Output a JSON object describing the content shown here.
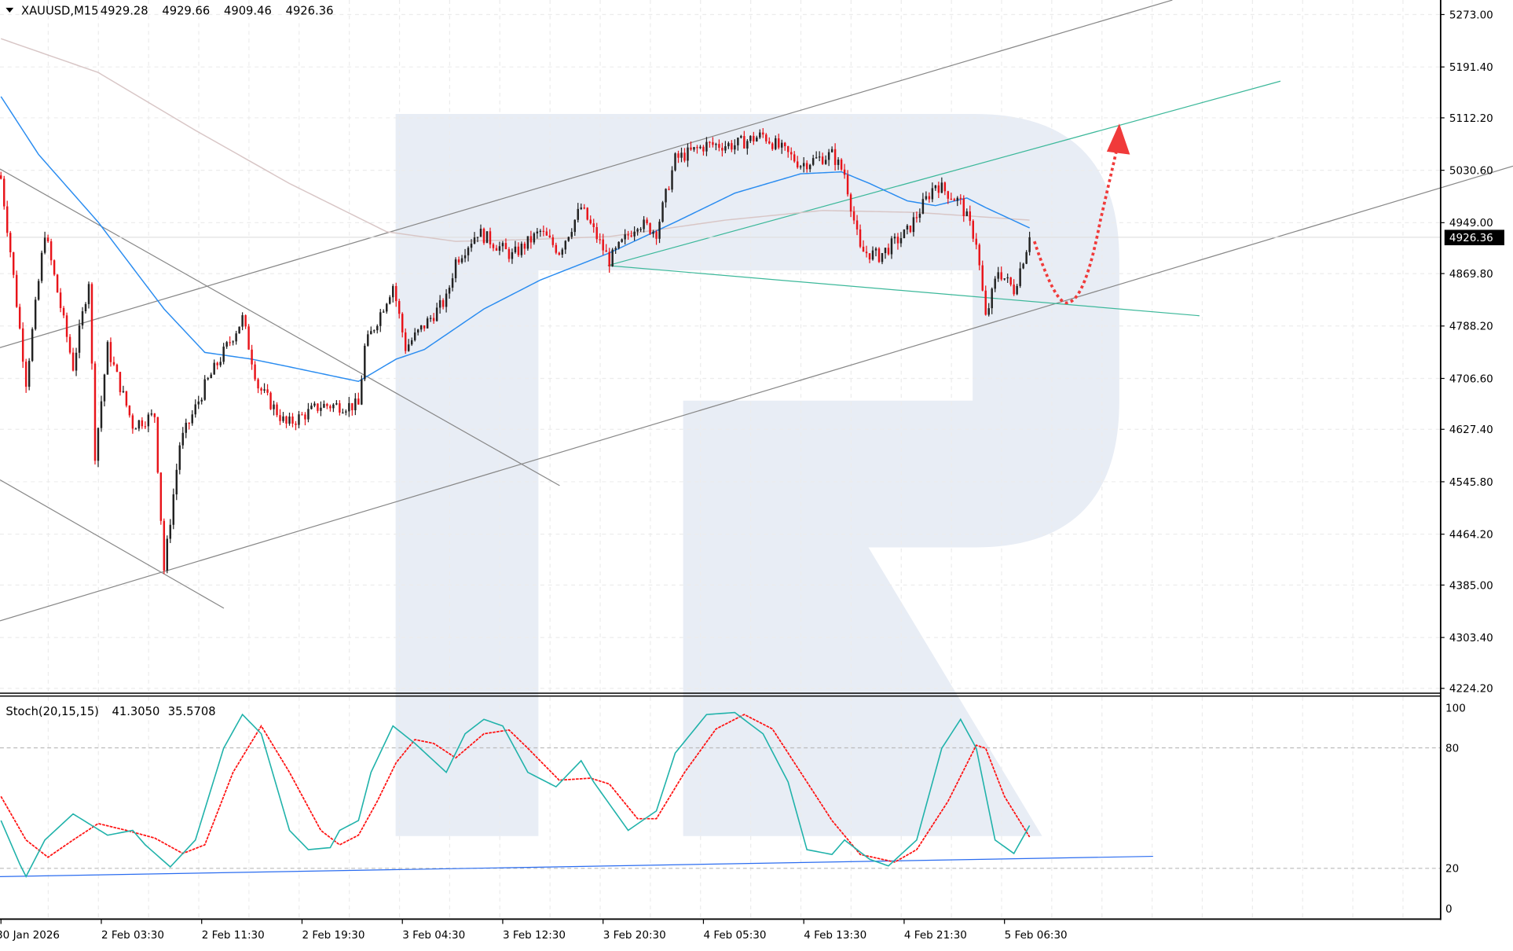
{
  "header": {
    "symbol": "XAUUSD,M15",
    "open": "4929.28",
    "high": "4929.66",
    "low": "4909.46",
    "close": "4926.36"
  },
  "current_price_label": "4926.36",
  "colors": {
    "bull": "#222222",
    "bear": "#e8141a",
    "ma_fast": "#2a8cf0",
    "ma_slow": "#d8c6c6",
    "stoch_k": "#20b2aa",
    "stoch_d": "#ff1010",
    "channel": "#888888",
    "green_lines": "#3cb89a",
    "forecast": "#f03a3a",
    "watermark": "#e8edf5"
  },
  "chart_data": [
    {
      "type": "candlestick",
      "title": "XAUUSD,M15",
      "price_ticks": [
        "5273.00",
        "5191.40",
        "5112.20",
        "5030.60",
        "4949.00",
        "4869.80",
        "4788.20",
        "4706.60",
        "4627.40",
        "4545.80",
        "4464.20",
        "4385.00",
        "4303.40",
        "4224.20"
      ],
      "ylim": [
        4224.2,
        5273.0
      ],
      "time_ticks": [
        "30 Jan 2026",
        "2 Feb 03:30",
        "2 Feb 11:30",
        "2 Feb 19:30",
        "3 Feb 04:30",
        "3 Feb 12:30",
        "3 Feb 20:30",
        "4 Feb 05:30",
        "4 Feb 13:30",
        "4 Feb 21:30",
        "5 Feb 06:30"
      ],
      "bars_per_time_tick": 32,
      "close_path": [
        [
          0,
          5017.6
        ],
        [
          3,
          4904.9
        ],
        [
          8,
          4702.0
        ],
        [
          14,
          4934.9
        ],
        [
          23,
          4724.6
        ],
        [
          28,
          4859.8
        ],
        [
          30,
          4589.3
        ],
        [
          34,
          4754.6
        ],
        [
          42,
          4634.4
        ],
        [
          49,
          4649.4
        ],
        [
          52,
          4409.0
        ],
        [
          57,
          4604.3
        ],
        [
          65,
          4694.5
        ],
        [
          77,
          4799.7
        ],
        [
          82,
          4694.5
        ],
        [
          91,
          4634.4
        ],
        [
          102,
          4664.4
        ],
        [
          114,
          4664.4
        ],
        [
          116,
          4754.6
        ],
        [
          125,
          4852.3
        ],
        [
          129,
          4754.6
        ],
        [
          142,
          4829.7
        ],
        [
          145,
          4889.8
        ],
        [
          152,
          4934.9
        ],
        [
          163,
          4897.3
        ],
        [
          172,
          4934.9
        ],
        [
          178,
          4904.9
        ],
        [
          185,
          4972.5
        ],
        [
          194,
          4889.8
        ],
        [
          203,
          4949.9
        ],
        [
          209,
          4934.9
        ],
        [
          215,
          5047.6
        ],
        [
          225,
          5070.1
        ],
        [
          234,
          5070.1
        ],
        [
          243,
          5085.2
        ],
        [
          255,
          5040.1
        ],
        [
          265,
          5055.1
        ],
        [
          269,
          5025.1
        ],
        [
          274,
          4904.9
        ],
        [
          280,
          4897.3
        ],
        [
          289,
          4934.9
        ],
        [
          298,
          5010.0
        ],
        [
          306,
          4980.0
        ],
        [
          311,
          4919.9
        ],
        [
          314,
          4799.7
        ],
        [
          318,
          4874.8
        ],
        [
          323,
          4844.7
        ],
        [
          328,
          4926.4
        ]
      ],
      "ma_fast": [
        [
          0,
          5145.3
        ],
        [
          12,
          5055.1
        ],
        [
          31,
          4949.9
        ],
        [
          52,
          4814.7
        ],
        [
          65,
          4747.1
        ],
        [
          80,
          4736.6
        ],
        [
          92,
          4724.6
        ],
        [
          114,
          4702.0
        ],
        [
          126,
          4736.6
        ],
        [
          135,
          4751.6
        ],
        [
          154,
          4814.7
        ],
        [
          172,
          4859.8
        ],
        [
          194,
          4901.9
        ],
        [
          215,
          4949.9
        ],
        [
          234,
          4995.0
        ],
        [
          255,
          5025.1
        ],
        [
          268,
          5028.1
        ],
        [
          277,
          5010.0
        ],
        [
          289,
          4983.0
        ],
        [
          298,
          4975.5
        ],
        [
          308,
          4987.5
        ],
        [
          314,
          4972.5
        ],
        [
          328,
          4940.9
        ]
      ],
      "ma_slow": [
        [
          0,
          5235.4
        ],
        [
          31,
          5182.8
        ],
        [
          62,
          5092.7
        ],
        [
          92,
          5010.0
        ],
        [
          123,
          4934.9
        ],
        [
          145,
          4919.9
        ],
        [
          169,
          4922.9
        ],
        [
          194,
          4927.4
        ],
        [
          231,
          4953.0
        ],
        [
          262,
          4968.0
        ],
        [
          292,
          4965.0
        ],
        [
          328,
          4953.0
        ]
      ]
    },
    {
      "type": "line",
      "title": "Stoch(20,15,15)",
      "values_label": [
        "41.3050",
        "35.5708"
      ],
      "ylim": [
        0,
        100
      ],
      "levels": [
        20,
        80
      ],
      "y_ticks": [
        "100",
        "80",
        "20",
        "0"
      ],
      "series": [
        {
          "key": "k",
          "values": [
            [
              0,
              43.8
            ],
            [
              6,
              22.1
            ],
            [
              8,
              15.9
            ],
            [
              14,
              34.1
            ],
            [
              23,
              47.1
            ],
            [
              29,
              41.3
            ],
            [
              34,
              36.5
            ],
            [
              42,
              38.9
            ],
            [
              46,
              31.7
            ],
            [
              54,
              20.7
            ],
            [
              62,
              34.1
            ],
            [
              71,
              79.8
            ],
            [
              77,
              96.6
            ],
            [
              83,
              87.0
            ],
            [
              92,
              38.9
            ],
            [
              98,
              29.3
            ],
            [
              105,
              30.3
            ],
            [
              108,
              38.9
            ],
            [
              114,
              43.8
            ],
            [
              118,
              67.8
            ],
            [
              125,
              90.9
            ],
            [
              132,
              82.2
            ],
            [
              142,
              67.8
            ],
            [
              148,
              87.0
            ],
            [
              154,
              94.2
            ],
            [
              160,
              90.9
            ],
            [
              168,
              67.8
            ],
            [
              177,
              60.6
            ],
            [
              185,
              73.6
            ],
            [
              189,
              63.0
            ],
            [
              200,
              38.9
            ],
            [
              209,
              48.6
            ],
            [
              215,
              77.4
            ],
            [
              225,
              96.6
            ],
            [
              234,
              97.6
            ],
            [
              243,
              87.0
            ],
            [
              251,
              63.0
            ],
            [
              257,
              29.3
            ],
            [
              265,
              26.9
            ],
            [
              269,
              34.1
            ],
            [
              277,
              24.5
            ],
            [
              283,
              21.2
            ],
            [
              292,
              34.1
            ],
            [
              300,
              79.8
            ],
            [
              306,
              94.2
            ],
            [
              311,
              79.8
            ],
            [
              317,
              34.1
            ],
            [
              323,
              27.4
            ],
            [
              328,
              41.3
            ]
          ]
        },
        {
          "key": "d",
          "values": [
            [
              0,
              55.8
            ],
            [
              8,
              34.1
            ],
            [
              15,
              25.5
            ],
            [
              23,
              34.1
            ],
            [
              31,
              42.3
            ],
            [
              40,
              38.9
            ],
            [
              49,
              35.1
            ],
            [
              58,
              27.4
            ],
            [
              65,
              31.7
            ],
            [
              74,
              67.8
            ],
            [
              83,
              90.9
            ],
            [
              92,
              67.8
            ],
            [
              102,
              38.9
            ],
            [
              108,
              31.7
            ],
            [
              114,
              36.5
            ],
            [
              120,
              53.4
            ],
            [
              126,
              72.6
            ],
            [
              132,
              84.1
            ],
            [
              138,
              82.2
            ],
            [
              145,
              75.0
            ],
            [
              154,
              87.0
            ],
            [
              162,
              88.9
            ],
            [
              168,
              79.8
            ],
            [
              178,
              63.9
            ],
            [
              188,
              64.9
            ],
            [
              194,
              62.0
            ],
            [
              203,
              44.7
            ],
            [
              209,
              44.7
            ],
            [
              218,
              67.8
            ],
            [
              228,
              89.4
            ],
            [
              237,
              96.6
            ],
            [
              246,
              89.4
            ],
            [
              255,
              67.8
            ],
            [
              265,
              43.8
            ],
            [
              274,
              26.9
            ],
            [
              285,
              23.1
            ],
            [
              292,
              29.3
            ],
            [
              302,
              53.4
            ],
            [
              311,
              81.3
            ],
            [
              314,
              79.8
            ],
            [
              320,
              55.8
            ],
            [
              328,
              35.6
            ]
          ]
        }
      ]
    }
  ]
}
